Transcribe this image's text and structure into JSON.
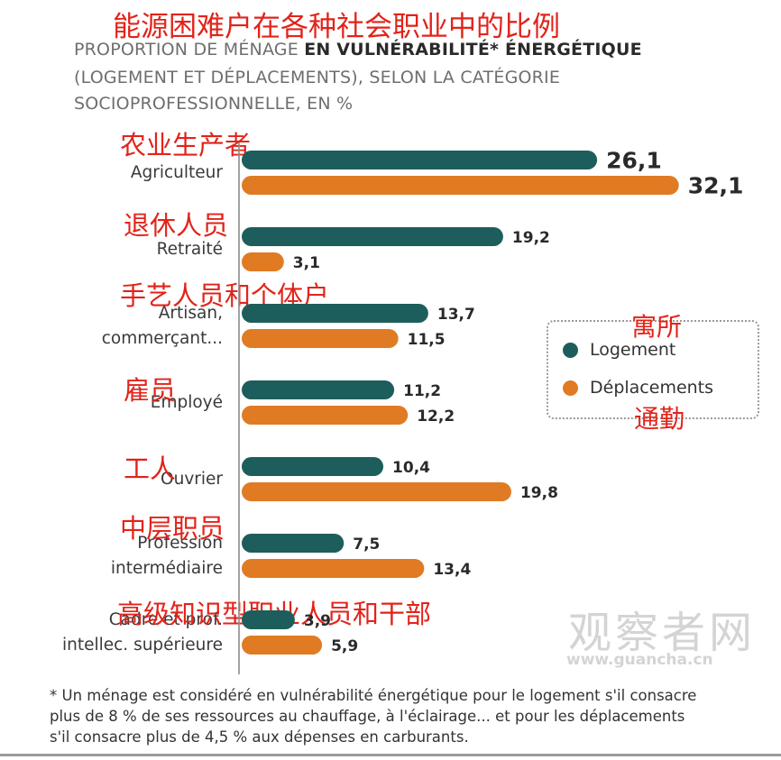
{
  "overlay_title": "能源困难户在各种社会职业中的比例",
  "subtitle": {
    "line1_pre": "PROPORTION DE MÉNAGE ",
    "line1_bold": "EN VULNÉRABILITÉ* ÉNERGÉTIQUE",
    "line2": "(LOGEMENT ET DÉPLACEMENTS), SELON LA CATÉGORIE",
    "line3": "SOCIOPROFESSIONNELLE, EN %"
  },
  "categories": [
    {
      "label_lines": [
        "Agriculteur"
      ],
      "cn": "农业生产者"
    },
    {
      "label_lines": [
        "Retraité"
      ],
      "cn": "退休人员"
    },
    {
      "label_lines": [
        "Artisan,",
        "commerçant..."
      ],
      "cn": "手艺人员和个体户"
    },
    {
      "label_lines": [
        "Employé"
      ],
      "cn": "雇员"
    },
    {
      "label_lines": [
        "Ouvrier"
      ],
      "cn": "工人"
    },
    {
      "label_lines": [
        "Profession",
        "intermédiaire"
      ],
      "cn": "中层职员"
    },
    {
      "label_lines": [
        "Cadre et prof.",
        "intellec. supérieure"
      ],
      "cn": "高级知识型职业人员和干部"
    }
  ],
  "legend": {
    "logement": "Logement",
    "deplacements": "Déplacements",
    "logement_cn": "寓所",
    "deplacements_cn": "通勤"
  },
  "colors": {
    "logement": "#1d5e5c",
    "deplacements": "#e07b23"
  },
  "watermark": {
    "text": "观察者网",
    "url": "www.guancha.cn"
  },
  "footnote": {
    "line1": "* Un ménage est considéré en vulnérabilité énergétique pour le logement s'il consacre",
    "line2": "plus de 8 % de ses ressources au chauffage, à l'éclairage... et pour les déplacements",
    "line3": "s'il consacre plus de 4,5 % aux dépenses en carburants."
  },
  "chart_data": {
    "type": "bar",
    "orientation": "horizontal",
    "categories": [
      "Agriculteur",
      "Retraité",
      "Artisan, commerçant...",
      "Employé",
      "Ouvrier",
      "Profession intermédiaire",
      "Cadre et prof. intellec. supérieure"
    ],
    "series": [
      {
        "name": "Logement",
        "values": [
          26.1,
          19.2,
          13.7,
          11.2,
          10.4,
          7.5,
          3.9
        ],
        "labels": [
          "26,1",
          "19,2",
          "13,7",
          "11,2",
          "10,4",
          "7,5",
          "3,9"
        ]
      },
      {
        "name": "Déplacements",
        "values": [
          32.1,
          3.1,
          11.5,
          12.2,
          19.8,
          13.4,
          5.9
        ],
        "labels": [
          "32,1",
          "3,1",
          "11,5",
          "12,2",
          "19,8",
          "13,4",
          "5,9"
        ]
      }
    ],
    "highlighted_category": "Agriculteur",
    "legend_position": "right",
    "grid": false
  }
}
